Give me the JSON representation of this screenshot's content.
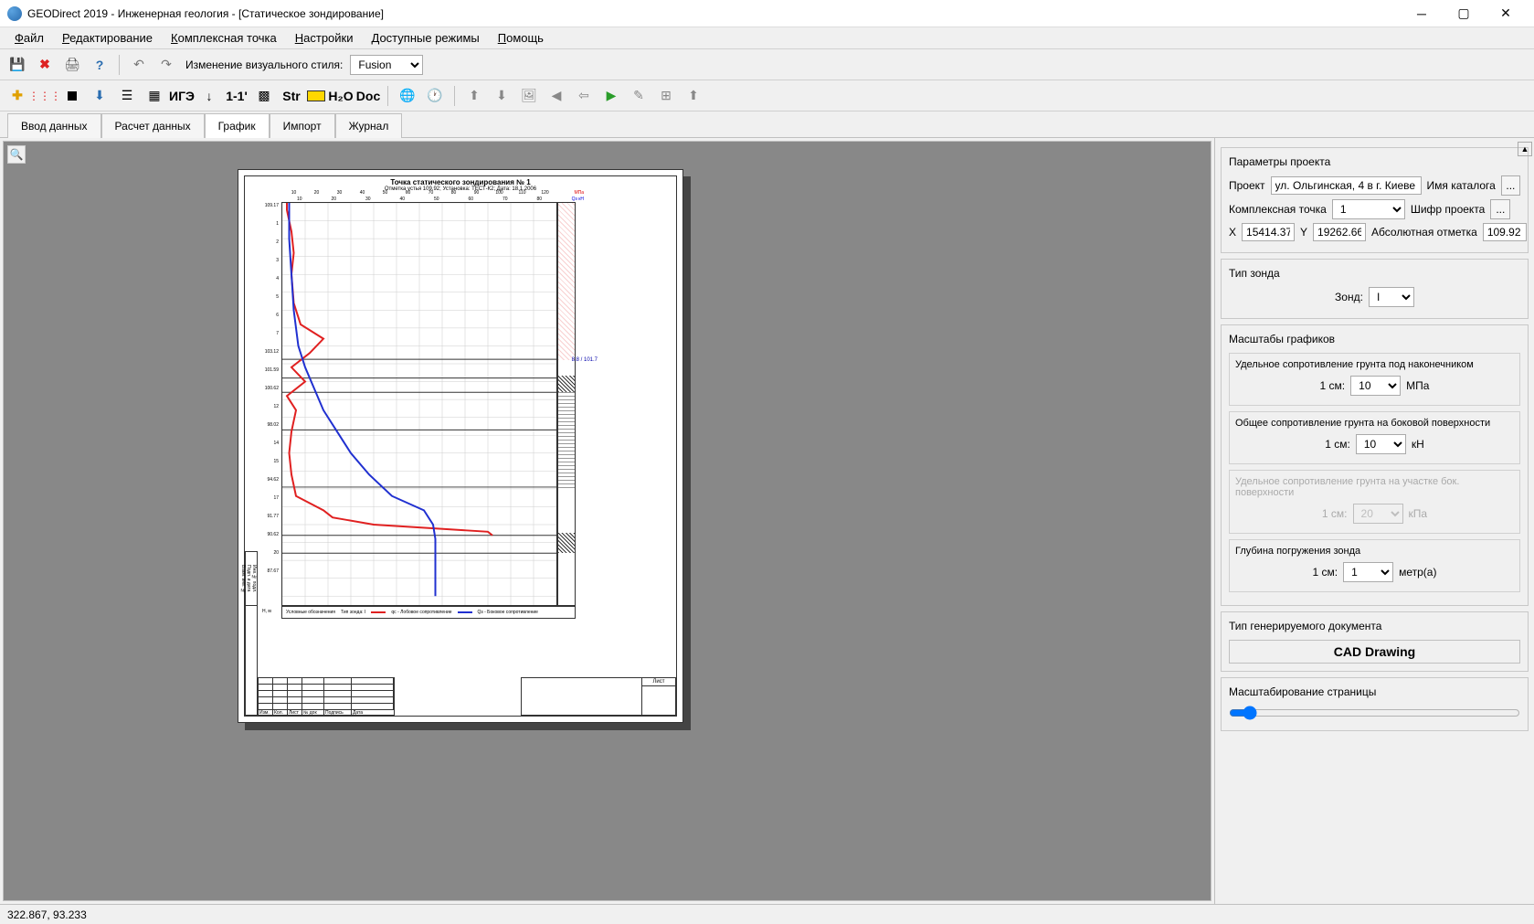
{
  "window": {
    "title": "GEODirect 2019 - Инженерная геология - [Статическое зондирование]"
  },
  "menu": {
    "file": "Файл",
    "edit": "Редактирование",
    "complex": "Комплексная точка",
    "settings": "Настройки",
    "modes": "Доступные режимы",
    "help": "Помощь"
  },
  "toolbar1": {
    "style_label": "Изменение визуального стиля:",
    "style_value": "Fusion"
  },
  "tabs": {
    "input": "Ввод данных",
    "calc": "Расчет данных",
    "graph": "График",
    "import": "Импорт",
    "journal": "Журнал"
  },
  "chart": {
    "title": "Точка статического зондирования № 1",
    "subtitle": "Отметка устья 109.92; Установка: ТЕСТ-К2; Дата: 18.1.2006",
    "x_top_ticks": [
      "10",
      "20",
      "30",
      "40",
      "50",
      "60",
      "70",
      "80",
      "90",
      "100",
      "110",
      "120"
    ],
    "x_top2_ticks": [
      "10",
      "20",
      "30",
      "40",
      "50",
      "60",
      "70",
      "80"
    ],
    "x_unit_top": "МПа",
    "x_unit_top2": "Qз кН",
    "y_labels": [
      "109.17",
      "1",
      "2",
      "3",
      "4",
      "5",
      "6",
      "7",
      "103.12",
      "101.59",
      "100.62",
      "12",
      "98.02",
      "14",
      "15",
      "94.62",
      "17",
      "91.77",
      "90.62",
      "20",
      "87.67"
    ],
    "soil_marks": [
      "2",
      "9",
      "10",
      "13",
      "15"
    ],
    "water_mark": "8.8 / 101.7",
    "legend_title": "Условные обозначения",
    "legend_probe": "Тип зонда: I",
    "legend_red": "qc - Лобовое сопротивление",
    "legend_blue": "Qз - Боковое сопротивление",
    "y_bottom": "Н, м",
    "red_series": {
      "color": "#e02020",
      "points": [
        [
          2,
          0
        ],
        [
          2,
          8
        ],
        [
          4,
          32
        ],
        [
          5,
          56
        ],
        [
          4,
          80
        ],
        [
          5,
          112
        ],
        [
          8,
          136
        ],
        [
          18,
          152
        ],
        [
          12,
          168
        ],
        [
          4,
          184
        ],
        [
          10,
          200
        ],
        [
          2,
          216
        ],
        [
          6,
          232
        ],
        [
          4,
          256
        ],
        [
          3,
          280
        ],
        [
          4,
          304
        ],
        [
          6,
          328
        ],
        [
          18,
          344
        ],
        [
          22,
          352
        ],
        [
          40,
          360
        ],
        [
          90,
          368
        ],
        [
          92,
          372
        ]
      ]
    },
    "blue_series": {
      "color": "#2030d0",
      "points": [
        [
          3,
          0
        ],
        [
          3,
          40
        ],
        [
          4,
          80
        ],
        [
          5,
          120
        ],
        [
          7,
          160
        ],
        [
          10,
          184
        ],
        [
          14,
          208
        ],
        [
          18,
          232
        ],
        [
          24,
          256
        ],
        [
          30,
          280
        ],
        [
          38,
          304
        ],
        [
          48,
          328
        ],
        [
          62,
          344
        ],
        [
          66,
          360
        ],
        [
          67,
          376
        ],
        [
          67,
          440
        ]
      ]
    },
    "grid_color": "#cccccc",
    "axis_color": "#333333",
    "stamp": {
      "left_labels": [
        "Инв.№ подл.",
        "Подп. и дата",
        "Взам. инв. №"
      ],
      "cols": [
        "Изм.",
        "Кол.",
        "Лист",
        "№ док",
        "Подпись",
        "Дата"
      ],
      "sheet": "Лист"
    }
  },
  "panel": {
    "project_params": "Параметры проекта",
    "project_label": "Проект",
    "project_value": "ул. Ольгинская, 4 в г. Киеве",
    "catalog_label": "Имя каталога",
    "complex_label": "Комплексная точка",
    "complex_value": "1",
    "code_label": "Шифр проекта",
    "x_label": "X",
    "x_value": "15414.37",
    "y_label": "Y",
    "y_value": "19262.66",
    "abs_label": "Абсолютная отметка",
    "abs_value": "109.92",
    "probe_type": "Тип зонда",
    "probe_label": "Зонд:",
    "probe_value": "I",
    "scales": "Масштабы графиков",
    "scale1_title": "Удельное сопротивление грунта под наконечником",
    "scale1_prefix": "1 см:",
    "scale1_value": "10",
    "scale1_unit": "МПа",
    "scale2_title": "Общее сопротивление грунта на боковой поверхности",
    "scale2_value": "10",
    "scale2_unit": "кН",
    "scale3_title": "Удельное сопротивление грунта на участке бок. поверхности",
    "scale3_value": "20",
    "scale3_unit": "кПа",
    "scale4_title": "Глубина погружения зонда",
    "scale4_value": "1",
    "scale4_unit": "метр(а)",
    "doctype_title": "Тип генерируемого документа",
    "doctype_value": "CAD Drawing",
    "page_scale": "Масштабирование страницы"
  },
  "status": {
    "coords": "322.867, 93.233"
  }
}
